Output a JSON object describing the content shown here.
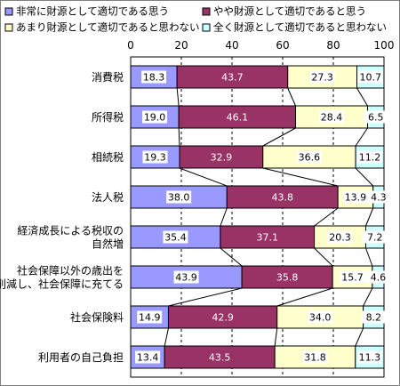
{
  "chart_data": {
    "type": "bar",
    "orientation": "horizontal",
    "stacked": true,
    "percent": true,
    "xlim": [
      0,
      100
    ],
    "x_ticks": [
      "0",
      "20",
      "40",
      "60",
      "80",
      "100"
    ],
    "grid": "vertical dashed lines at 20, 40, 60, 80",
    "legend_position": "top",
    "categories": [
      "消費税",
      "所得税",
      "相続税",
      "法人税",
      "経済成長による税収の\n自然増",
      "社会保障以外の歳出を\n削減し、社会保障に充てる",
      "社会保険料",
      "利用者の自己負担"
    ],
    "series": [
      {
        "name": "非常に財源として適切である思う",
        "color": "#9999ff",
        "values": [
          18.3,
          19.0,
          19.3,
          38.0,
          35.4,
          43.9,
          14.9,
          13.4
        ]
      },
      {
        "name": "やや財源として適切であると思う",
        "color": "#993366",
        "values": [
          43.7,
          46.1,
          32.9,
          43.8,
          37.1,
          35.8,
          42.9,
          43.5
        ]
      },
      {
        "name": "あまり財源として適切であると思わない",
        "color": "#ffffcc",
        "values": [
          27.3,
          28.4,
          36.6,
          13.9,
          20.3,
          15.7,
          34.0,
          31.8
        ]
      },
      {
        "name": "全く財源として適切であると思わない",
        "color": "#ccffff",
        "values": [
          10.7,
          6.5,
          11.2,
          4.3,
          7.2,
          4.6,
          8.2,
          11.3
        ]
      }
    ]
  }
}
